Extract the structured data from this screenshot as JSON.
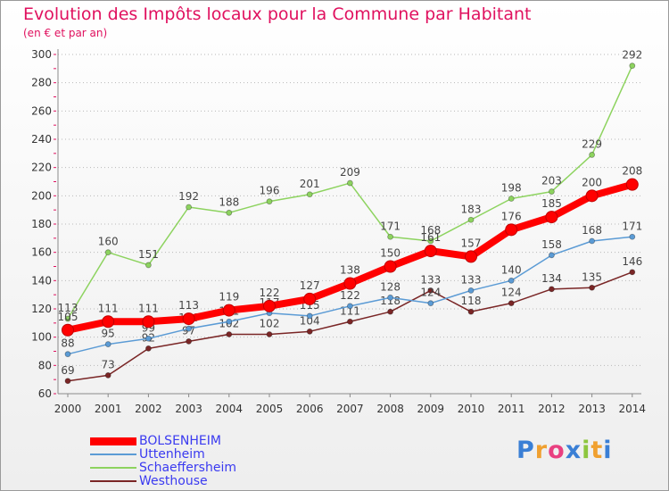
{
  "title": "Evolution des Impôts locaux pour la Commune par Habitant",
  "subtitle": "(en € et par an)",
  "logo": {
    "text": "Proxiti",
    "letter_colors": [
      "#3a7fd5",
      "#f0a030",
      "#e94080",
      "#3a7fd5",
      "#8dc63f",
      "#f0a030",
      "#3a7fd5"
    ]
  },
  "chart_data": {
    "type": "line",
    "title": "Evolution des Impôts locaux pour la Commune par Habitant",
    "subtitle": "(en € et par an)",
    "xlabel": "",
    "ylabel": "",
    "x": [
      "2000",
      "2001",
      "2002",
      "2003",
      "2004",
      "2005",
      "2006",
      "2007",
      "2008",
      "2009",
      "2010",
      "2011",
      "2012",
      "2013",
      "2014"
    ],
    "y_ticks": [
      "60",
      "80",
      "100",
      "120",
      "140",
      "160",
      "180",
      "200",
      "220",
      "240",
      "260",
      "280",
      "300"
    ],
    "ylim": [
      60,
      300
    ],
    "grid": "horizontal-dotted",
    "legend_position": "bottom-left",
    "series": [
      {
        "name": "BOLSENHEIM",
        "color": "#ff0000",
        "values": [
          105,
          111,
          111,
          113,
          119,
          122,
          127,
          138,
          150,
          161,
          157,
          176,
          185,
          200,
          208
        ],
        "labels": [
          "105",
          "111",
          "111",
          "113",
          "119",
          "122",
          "127",
          "138",
          "150",
          "161",
          "157",
          "176",
          "185",
          "200",
          "208"
        ]
      },
      {
        "name": "Uttenheim",
        "color": "#5b9bd5",
        "values": [
          88,
          95,
          99,
          106,
          111,
          117,
          115,
          122,
          128,
          124,
          133,
          140,
          158,
          168,
          171
        ],
        "labels": [
          "88",
          "95",
          "99",
          "106",
          "111",
          "117",
          "115",
          "122",
          "128",
          "124",
          "133",
          "140",
          "158",
          "168",
          "171"
        ]
      },
      {
        "name": "Schaeffersheim",
        "color": "#8dd35f",
        "values": [
          113,
          160,
          151,
          192,
          188,
          196,
          201,
          209,
          171,
          168,
          183,
          198,
          203,
          229,
          292
        ],
        "labels": [
          "113",
          "160",
          "151",
          "192",
          "188",
          "196",
          "201",
          "209",
          "171",
          "168",
          "183",
          "198",
          "203",
          "229",
          "292"
        ]
      },
      {
        "name": "Westhouse",
        "color": "#7a2626",
        "values": [
          69,
          73,
          92,
          97,
          102,
          102,
          104,
          111,
          118,
          133,
          118,
          124,
          134,
          135,
          146
        ],
        "labels": [
          "69",
          "73",
          "92",
          "97",
          "102",
          "102",
          "104",
          "111",
          "118",
          "133",
          "118",
          "124",
          "134",
          "135",
          "146"
        ]
      }
    ]
  }
}
